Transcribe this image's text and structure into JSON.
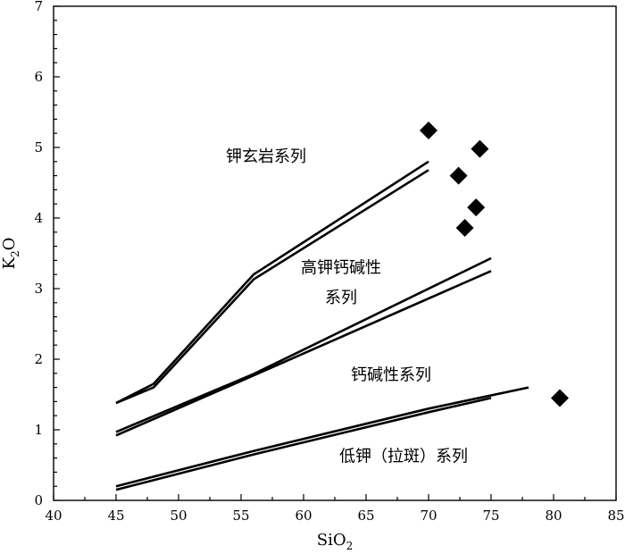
{
  "chart_data": {
    "type": "line",
    "xlabel": "SiO",
    "xlabel_sub": "2",
    "ylabel": "K",
    "ylabel_sub": "2",
    "ylabel_tail": "O",
    "xlim": [
      40,
      85
    ],
    "ylim": [
      0,
      7
    ],
    "x_ticks": [
      40,
      45,
      50,
      55,
      60,
      65,
      70,
      75,
      80,
      85
    ],
    "y_ticks": [
      0,
      1,
      2,
      3,
      4,
      5,
      6,
      7
    ],
    "grid": false,
    "boundary_lines": [
      {
        "points": [
          [
            45,
            1.38
          ],
          [
            48,
            1.65
          ],
          [
            56,
            3.2
          ],
          [
            70,
            4.8
          ]
        ]
      },
      {
        "points": [
          [
            45,
            1.38
          ],
          [
            48,
            1.6
          ],
          [
            56,
            3.13
          ],
          [
            70,
            4.68
          ]
        ]
      },
      {
        "points": [
          [
            45,
            0.97
          ],
          [
            56,
            1.79
          ],
          [
            75,
            3.43
          ]
        ]
      },
      {
        "points": [
          [
            45,
            0.92
          ],
          [
            56,
            1.77
          ],
          [
            75,
            3.25
          ]
        ]
      },
      {
        "points": [
          [
            45,
            0.2
          ],
          [
            56,
            0.7
          ],
          [
            70,
            1.3
          ],
          [
            78,
            1.6
          ]
        ]
      },
      {
        "points": [
          [
            45,
            0.15
          ],
          [
            56,
            0.65
          ],
          [
            70,
            1.25
          ],
          [
            75,
            1.45
          ]
        ]
      }
    ],
    "samples": [
      {
        "x": 70.0,
        "y": 5.24
      },
      {
        "x": 74.1,
        "y": 4.98
      },
      {
        "x": 72.4,
        "y": 4.6
      },
      {
        "x": 73.8,
        "y": 4.15
      },
      {
        "x": 72.9,
        "y": 3.86
      },
      {
        "x": 80.5,
        "y": 1.45
      }
    ],
    "region_labels": [
      {
        "text": "钾玄岩系列",
        "x": 57,
        "y": 4.8
      },
      {
        "text": "高钾钙碱性",
        "x": 63,
        "y": 3.22
      },
      {
        "text": "系列",
        "x": 63,
        "y": 2.8
      },
      {
        "text": "钙碱性系列",
        "x": 67,
        "y": 1.7
      },
      {
        "text": "低钾（拉斑）系列",
        "x": 68,
        "y": 0.55
      }
    ]
  }
}
